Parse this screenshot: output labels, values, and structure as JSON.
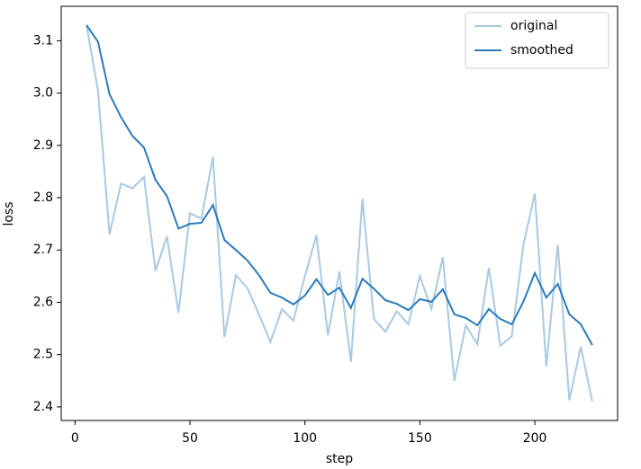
{
  "chart_data": {
    "type": "line",
    "xlabel": "step",
    "ylabel": "loss",
    "x": [
      5,
      10,
      15,
      20,
      25,
      30,
      35,
      40,
      45,
      50,
      55,
      60,
      65,
      70,
      75,
      80,
      85,
      90,
      95,
      100,
      105,
      110,
      115,
      120,
      125,
      130,
      135,
      140,
      145,
      150,
      155,
      160,
      165,
      170,
      175,
      180,
      185,
      190,
      195,
      200,
      205,
      210,
      215,
      220,
      225
    ],
    "series": [
      {
        "name": "original",
        "color": "#a9c9e2",
        "values": [
          3.13,
          3.005,
          2.73,
          2.827,
          2.818,
          2.84,
          2.66,
          2.726,
          2.58,
          2.77,
          2.76,
          2.878,
          2.534,
          2.652,
          2.627,
          2.577,
          2.524,
          2.587,
          2.565,
          2.65,
          2.728,
          2.537,
          2.659,
          2.486,
          2.798,
          2.568,
          2.544,
          2.583,
          2.558,
          2.65,
          2.587,
          2.686,
          2.45,
          2.556,
          2.52,
          2.666,
          2.517,
          2.535,
          2.709,
          2.808,
          2.477,
          2.71,
          2.413,
          2.515,
          2.41
        ]
      },
      {
        "name": "smoothed",
        "color": "#2b7bba",
        "values": [
          3.13,
          3.098,
          2.998,
          2.954,
          2.918,
          2.896,
          2.834,
          2.803,
          2.741,
          2.75,
          2.752,
          2.786,
          2.719,
          2.7,
          2.68,
          2.652,
          2.618,
          2.609,
          2.596,
          2.613,
          2.644,
          2.614,
          2.628,
          2.589,
          2.645,
          2.626,
          2.604,
          2.597,
          2.585,
          2.606,
          2.601,
          2.625,
          2.577,
          2.57,
          2.556,
          2.587,
          2.568,
          2.558,
          2.601,
          2.656,
          2.609,
          2.635,
          2.577,
          2.558,
          2.518
        ]
      }
    ],
    "xlim": [
      -6,
      236
    ],
    "ylim": [
      2.374,
      3.166
    ],
    "xticks": [
      0,
      50,
      100,
      150,
      200
    ],
    "yticks": [
      2.4,
      2.5,
      2.6,
      2.7,
      2.8,
      2.9,
      {
        "value": 3,
        "label": "3.0"
      },
      3.1
    ],
    "legend": "upper right"
  }
}
